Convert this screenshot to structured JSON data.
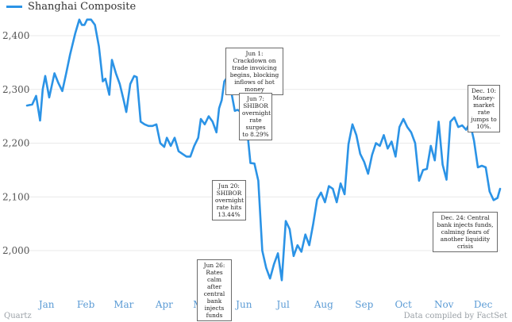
{
  "chart_data": {
    "type": "line",
    "title": "",
    "xlabel": "",
    "ylabel": "",
    "ylim": [
      1938,
      2435
    ],
    "y_ticks": [
      2000,
      2100,
      2200,
      2300,
      2400
    ],
    "y_tick_labels": [
      "2,000",
      "2,100",
      "2,200",
      "2,300",
      "2,400"
    ],
    "months": [
      "Jan",
      "Feb",
      "Mar",
      "Apr",
      "May",
      "Jun",
      "Jul",
      "Aug",
      "Sep",
      "Oct",
      "Nov",
      "Dec"
    ],
    "x_range": [
      1,
      363
    ],
    "color": "#2b93e6",
    "series": [
      {
        "name": "Shanghai Composite",
        "x": [
          1,
          5,
          8,
          11,
          13,
          15,
          18,
          22,
          25,
          28,
          31,
          34,
          38,
          41,
          43,
          45,
          47,
          50,
          53,
          56,
          59,
          61,
          64,
          66,
          69,
          72,
          75,
          77,
          80,
          83,
          85,
          88,
          91,
          94,
          97,
          100,
          103,
          106,
          108,
          111,
          114,
          117,
          120,
          123,
          126,
          129,
          132,
          134,
          137,
          140,
          143,
          146,
          148,
          150,
          152,
          155,
          157,
          160,
          162,
          165,
          168,
          170,
          172,
          175,
          178,
          181,
          184,
          187,
          190,
          193,
          196,
          199,
          202,
          205,
          208,
          211,
          214,
          217,
          220,
          223,
          226,
          229,
          232,
          235,
          238,
          241,
          244,
          247,
          250,
          253,
          256,
          259,
          262,
          265,
          268,
          271,
          274,
          277,
          280,
          283,
          286,
          289,
          292,
          295,
          298,
          301,
          304,
          307,
          310,
          313,
          316,
          319,
          322,
          325,
          328,
          331,
          334,
          337,
          340,
          343,
          346,
          349,
          352,
          355,
          358,
          361,
          363
        ],
        "values": [
          2270,
          2272,
          2288,
          2242,
          2300,
          2325,
          2285,
          2330,
          2312,
          2297,
          2330,
          2365,
          2405,
          2430,
          2420,
          2420,
          2430,
          2430,
          2420,
          2380,
          2315,
          2320,
          2290,
          2355,
          2330,
          2310,
          2280,
          2258,
          2310,
          2325,
          2323,
          2240,
          2235,
          2232,
          2232,
          2235,
          2200,
          2193,
          2210,
          2195,
          2210,
          2185,
          2180,
          2175,
          2175,
          2195,
          2210,
          2245,
          2235,
          2250,
          2240,
          2220,
          2265,
          2280,
          2315,
          2325,
          2300,
          2260,
          2262,
          2258,
          2210,
          2212,
          2163,
          2162,
          2130,
          2000,
          1968,
          1948,
          1975,
          1995,
          1945,
          2055,
          2040,
          1990,
          2010,
          1998,
          2030,
          2010,
          2050,
          2095,
          2108,
          2090,
          2120,
          2115,
          2090,
          2125,
          2105,
          2198,
          2235,
          2215,
          2180,
          2165,
          2143,
          2178,
          2200,
          2195,
          2215,
          2190,
          2203,
          2175,
          2230,
          2245,
          2230,
          2220,
          2200,
          2130,
          2150,
          2152,
          2195,
          2168,
          2240,
          2160,
          2132,
          2240,
          2248,
          2230,
          2233,
          2225,
          2238,
          2205,
          2155,
          2158,
          2155,
          2110,
          2094,
          2098,
          2115
        ]
      }
    ],
    "legend": [
      "Shanghai Composite"
    ],
    "legend_position": "top-left",
    "annotations": [
      {
        "text": "Jun 1: Crackdown on trade invoicing begins, blocking inflows of hot money"
      },
      {
        "text": "Jun 7: SHIBOR overnight rate surges to 8.29%"
      },
      {
        "text": "Jun 20: SHIBOR overnight rate hits 13.44%"
      },
      {
        "text": "Jun 26: Rates calm after central bank injects funds"
      },
      {
        "text": "Dec. 10: Money-market rate jumps to 10%."
      },
      {
        "text": "Dec. 24: Central bank injects funds, calming fears of another liquidity crisis"
      }
    ],
    "grid": true
  },
  "footer": {
    "source_left": "Quartz",
    "source_right": "Data compiled by FactSet"
  }
}
